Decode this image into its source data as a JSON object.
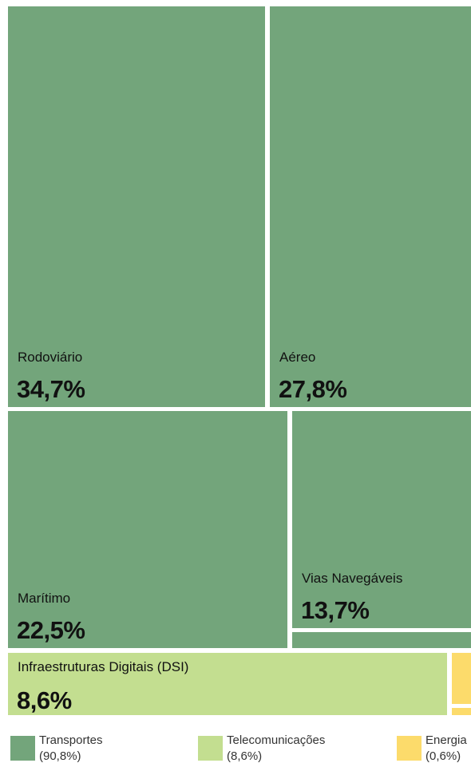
{
  "chart_data": {
    "type": "treemap",
    "groups": [
      {
        "name": "Transportes",
        "label": "(90,8%)",
        "value": 90.8,
        "color": "#73a57b"
      },
      {
        "name": "Telecomunicações",
        "label": "(8,6%)",
        "value": 8.6,
        "color": "#c3de90"
      },
      {
        "name": "Energia",
        "label": "(0,6%)",
        "value": 0.6,
        "color": "#fcdb6b"
      }
    ],
    "items": [
      {
        "name": "Rodoviário",
        "value": 34.7,
        "value_label": "34,7%",
        "group": 0
      },
      {
        "name": "Aéreo",
        "value": 27.8,
        "value_label": "27,8%",
        "group": 0
      },
      {
        "name": "Marítimo",
        "value": 22.5,
        "value_label": "22,5%",
        "group": 0
      },
      {
        "name": "Vias Navegáveis",
        "value": 13.7,
        "value_label": "13,7%",
        "group": 0
      },
      {
        "value": 1.3,
        "group": 0
      },
      {
        "name": "Infraestruturas Digitais (DSI)",
        "value": 8.6,
        "value_label": "8,6%",
        "group": 1
      },
      {
        "value": 0.4,
        "group": 2
      },
      {
        "value": 0.2,
        "group": 2
      }
    ]
  }
}
